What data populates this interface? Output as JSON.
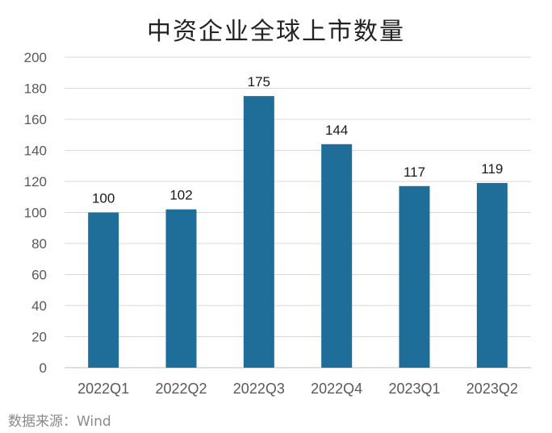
{
  "title": "中资企业全球上市数量",
  "source": "数据来源：Wind",
  "colors": {
    "bar": "#1f6e99",
    "grid": "#d9d9d9",
    "axis_text": "#595959",
    "label_text": "#1a1a1a"
  },
  "chart_data": {
    "type": "bar",
    "title": "中资企业全球上市数量",
    "categories": [
      "2022Q1",
      "2022Q2",
      "2022Q3",
      "2022Q4",
      "2023Q1",
      "2023Q2"
    ],
    "values": [
      100,
      102,
      175,
      144,
      117,
      119
    ],
    "data_labels": [
      "100",
      "102",
      "175",
      "144",
      "117",
      "119"
    ],
    "ylim": [
      0,
      200
    ],
    "yticks": [
      0,
      20,
      40,
      60,
      80,
      100,
      120,
      140,
      160,
      180,
      200
    ],
    "xlabel": "",
    "ylabel": "",
    "grid": true,
    "legend": "none"
  }
}
